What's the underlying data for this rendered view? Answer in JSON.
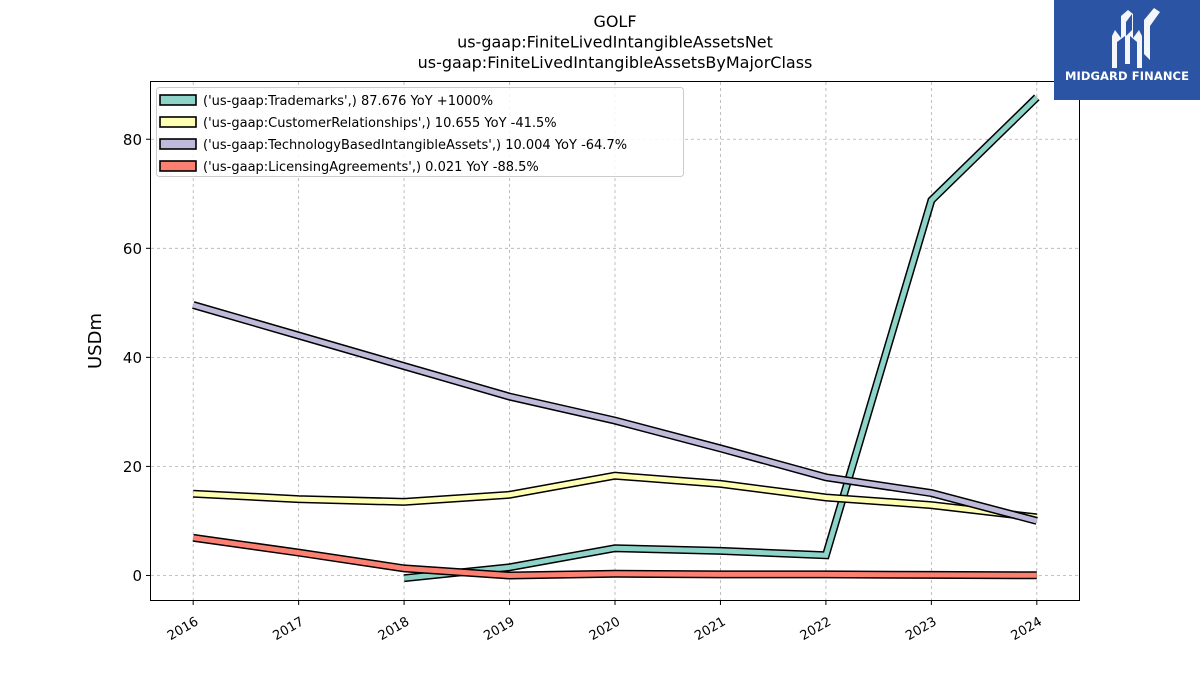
{
  "brand": {
    "name": "MIDGARD FINANCE",
    "bg_color": "#2b54a4"
  },
  "chart_data": {
    "type": "line",
    "title_lines": [
      "GOLF",
      "us-gaap:FiniteLivedIntangibleAssetsNet",
      "us-gaap:FiniteLivedIntangibleAssetsByMajorClass"
    ],
    "xlabel": "",
    "ylabel": "USDm",
    "x": [
      2016,
      2017,
      2018,
      2019,
      2020,
      2021,
      2022,
      2023,
      2024
    ],
    "xlim": [
      2015.6,
      2024.4
    ],
    "ylim": [
      -4.5,
      90.5
    ],
    "yticks": [
      0,
      20,
      40,
      60,
      80
    ],
    "grid": true,
    "legend_position": "top-left",
    "series": [
      {
        "name": "('us-gaap:Trademarks',) 87.676 YoY +1000%",
        "color": "#8dd3c7",
        "values": [
          null,
          null,
          -0.5,
          1.5,
          5.0,
          4.5,
          3.7,
          68.8,
          87.676
        ]
      },
      {
        "name": "('us-gaap:CustomerRelationships',) 10.655 YoY -41.5%",
        "color": "#ffffb3",
        "values": [
          15.0,
          14.0,
          13.5,
          14.8,
          18.3,
          16.8,
          14.3,
          12.9,
          10.655
        ]
      },
      {
        "name": "('us-gaap:TechnologyBasedIntangibleAssets',) 10.004 YoY -64.7%",
        "color": "#bebada",
        "values": [
          49.6,
          44.0,
          38.4,
          32.8,
          28.4,
          23.3,
          18.0,
          15.1,
          10.004
        ]
      },
      {
        "name": "('us-gaap:LicensingAgreements',) 0.021 YoY -88.5%",
        "color": "#fb8072",
        "values": [
          6.9,
          4.2,
          1.3,
          0.0,
          0.3,
          0.2,
          0.2,
          0.1,
          0.021
        ]
      }
    ]
  }
}
